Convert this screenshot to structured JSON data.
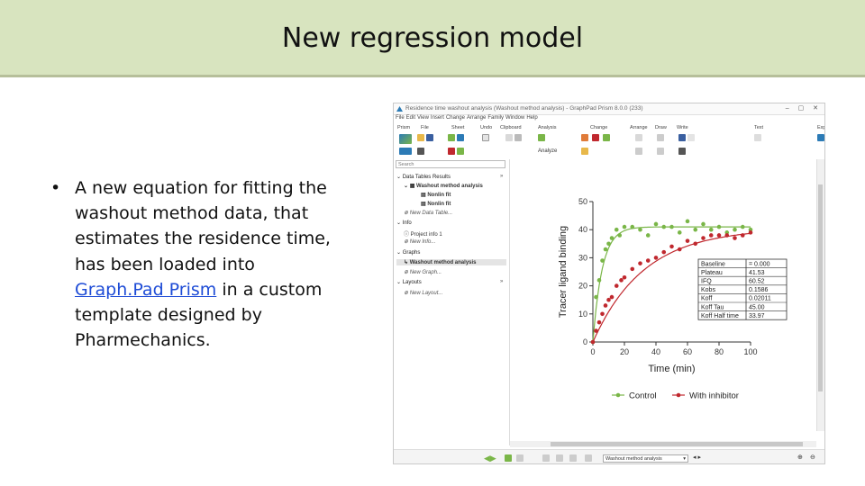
{
  "slide": {
    "title": "New regression model",
    "bullet_pre": "A new equation for fitting the washout method data, that estimates the residence time, has been loaded into ",
    "bullet_link": "Graph.Pad Prism",
    "bullet_post": " in a custom template designed by Pharmechanics."
  },
  "app": {
    "window_title": "Residence time washout analysis (Washout method analysis) - GraphPad Prism 8.0.0 (233)",
    "menu": [
      "File",
      "Edit",
      "View",
      "Insert",
      "Change",
      "Arrange",
      "Family",
      "Window",
      "Help"
    ],
    "ribbon_groups": [
      "Prism",
      "File",
      "Sheet",
      "Undo",
      "Clipboard",
      "Analysis",
      "Change",
      "Arrange",
      "Draw",
      "Write",
      "Text",
      "Export"
    ],
    "analyze_label": "Analyze",
    "search_placeholder": "Search",
    "tree": {
      "data_tables": "Data Tables Results",
      "washout_analysis": "Washout method analysis",
      "nonlin_fit_1": "Nonlin fit",
      "nonlin_fit_2": "Nonlin fit",
      "new_data_table": "New Data Table...",
      "info": "Info",
      "project_info": "Project info 1",
      "new_info": "New Info...",
      "graphs": "Graphs",
      "washout_graph": "Washout method analysis",
      "new_graph": "New Graph...",
      "layouts": "Layouts",
      "new_layout": "New Layout..."
    },
    "status_sheet": "Washout method analysis",
    "colors": {
      "control": "#7ab648",
      "inhibitor": "#c0282e",
      "accent": "#2c7bb6"
    }
  },
  "chart_data": {
    "type": "scatter",
    "title": "",
    "xlabel": "Time (min)",
    "ylabel": "Tracer ligand binding",
    "xlim": [
      0,
      100
    ],
    "ylim": [
      0,
      50
    ],
    "xticks": [
      0,
      20,
      40,
      60,
      80,
      100
    ],
    "yticks": [
      0,
      10,
      20,
      30,
      40,
      50
    ],
    "legend_position": "bottom",
    "series": [
      {
        "name": "Control",
        "color": "#7ab648",
        "points": [
          [
            0,
            0
          ],
          [
            2,
            16
          ],
          [
            4,
            22
          ],
          [
            6,
            29
          ],
          [
            8,
            33
          ],
          [
            10,
            35
          ],
          [
            12,
            37
          ],
          [
            15,
            40
          ],
          [
            17,
            38
          ],
          [
            20,
            41
          ],
          [
            25,
            41
          ],
          [
            30,
            40
          ],
          [
            35,
            38
          ],
          [
            40,
            42
          ],
          [
            45,
            41
          ],
          [
            50,
            41
          ],
          [
            55,
            39
          ],
          [
            60,
            43
          ],
          [
            65,
            40
          ],
          [
            70,
            42
          ],
          [
            75,
            40
          ],
          [
            80,
            41
          ],
          [
            85,
            39
          ],
          [
            90,
            40
          ],
          [
            95,
            41
          ],
          [
            100,
            40
          ]
        ],
        "fit": {
          "plateau": 41.0,
          "k": 0.17
        }
      },
      {
        "name": "With inhibitor",
        "color": "#c0282e",
        "points": [
          [
            0,
            0
          ],
          [
            2,
            4
          ],
          [
            4,
            7
          ],
          [
            6,
            10
          ],
          [
            8,
            13
          ],
          [
            10,
            15
          ],
          [
            12,
            16
          ],
          [
            15,
            20
          ],
          [
            18,
            22
          ],
          [
            20,
            23
          ],
          [
            25,
            26
          ],
          [
            30,
            28
          ],
          [
            35,
            29
          ],
          [
            40,
            30
          ],
          [
            45,
            32
          ],
          [
            50,
            34
          ],
          [
            55,
            33
          ],
          [
            60,
            36
          ],
          [
            65,
            35
          ],
          [
            70,
            37
          ],
          [
            75,
            38
          ],
          [
            80,
            38
          ],
          [
            85,
            38
          ],
          [
            90,
            37
          ],
          [
            95,
            38
          ],
          [
            100,
            39
          ]
        ],
        "fit": {
          "plateau": 40.5,
          "k": 0.031
        }
      }
    ],
    "results_table": [
      [
        "Baseline",
        "= 0.000"
      ],
      [
        "Plateau",
        "41.53"
      ],
      [
        "IFQ",
        "60.52"
      ],
      [
        "Kobs",
        "0.1586"
      ],
      [
        "Koff",
        "0.02011"
      ],
      [
        "Koff Tau",
        "45.00"
      ],
      [
        "Koff Half time",
        "33.97"
      ]
    ]
  }
}
